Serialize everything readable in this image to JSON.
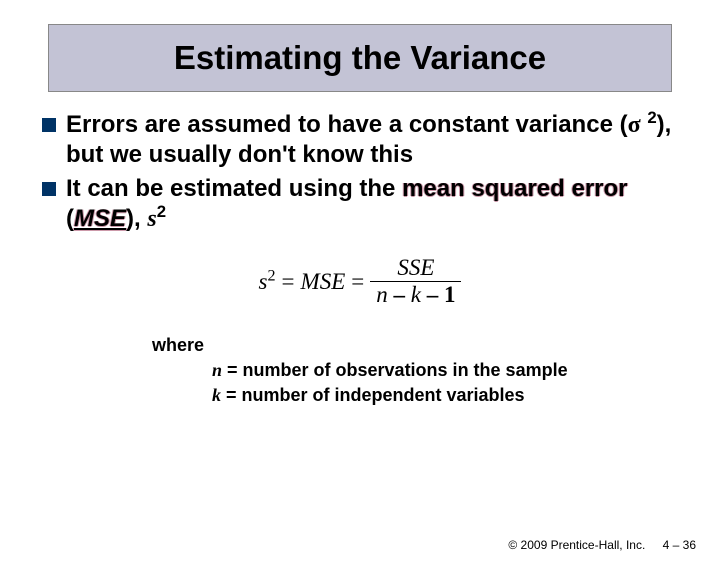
{
  "title": "Estimating the Variance",
  "bullets": {
    "b1_a": "Errors are assumed to have a constant variance (",
    "b1_sigma": "σ",
    "b1_exp": "2",
    "b1_b": "), but we usually don't know this",
    "b2_a": "It can be estimated using the ",
    "b2_mse_words": "mean squared error",
    "b2_paren_open": " (",
    "b2_mse_abbr": "MSE",
    "b2_paren_close": "), ",
    "b2_s": "s",
    "b2_s_exp": "2"
  },
  "formula": {
    "s": "s",
    "s_exp": "2",
    "eq": "=",
    "mse": "MSE",
    "num": "SSE",
    "den_n": "n",
    "den_m1": " – ",
    "den_k": "k",
    "den_m2": " – ",
    "den_one": "1"
  },
  "where": {
    "label": "where",
    "n_var": "n",
    "n_def": " = number of observations in the sample",
    "k_var": "k",
    "k_def": " = number of independent variables"
  },
  "footer": {
    "copyright": "© 2009 Prentice-Hall, Inc.",
    "page": "4 – 36"
  }
}
